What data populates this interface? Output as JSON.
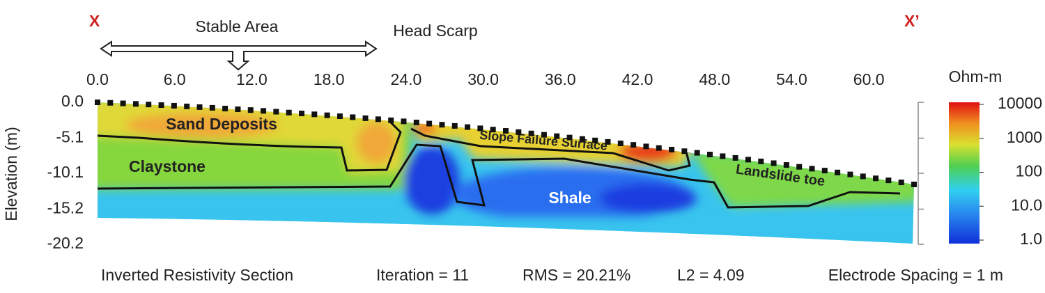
{
  "chart_data": {
    "type": "heatmap",
    "x_markers": {
      "left": "X",
      "right": "X’"
    },
    "annotations": {
      "stable_area": "Stable Area",
      "head_scarp": "Head Scarp",
      "sand": "Sand Deposits",
      "claystone": "Claystone",
      "slope": "Slope Failure Surface",
      "toe": "Landslide toe",
      "shale": "Shale"
    },
    "ylabel": "Elevation (m)",
    "xlim": [
      0,
      64
    ],
    "ylim": [
      -20.2,
      0
    ],
    "xticks": [
      {
        "value": 0,
        "label": "0.0"
      },
      {
        "value": 6,
        "label": "6.0"
      },
      {
        "value": 12,
        "label": "12.0"
      },
      {
        "value": 18,
        "label": "18.0"
      },
      {
        "value": 24,
        "label": "24.0"
      },
      {
        "value": 30,
        "label": "30.0"
      },
      {
        "value": 36,
        "label": "36.0"
      },
      {
        "value": 42,
        "label": "42.0"
      },
      {
        "value": 48,
        "label": "48.0"
      },
      {
        "value": 54,
        "label": "54.0"
      },
      {
        "value": 60,
        "label": "60.0"
      }
    ],
    "yticks": [
      {
        "value": 0,
        "label": "0.0"
      },
      -5.1,
      -10.1,
      -15.2,
      -20.2
    ],
    "colorbar": {
      "label": "Ohm-m",
      "scale": "log",
      "lim": [
        1,
        10000
      ],
      "ticks": [
        10000,
        1000,
        100,
        {
          "value": 10,
          "label": "10.0"
        },
        {
          "value": 1,
          "label": "1.0"
        }
      ]
    },
    "footer": [
      "Inverted Resistivity Section",
      "Iteration = 11",
      "RMS = 20.21%",
      "L2 = 4.09",
      "Electrode Spacing = 1 m"
    ]
  }
}
